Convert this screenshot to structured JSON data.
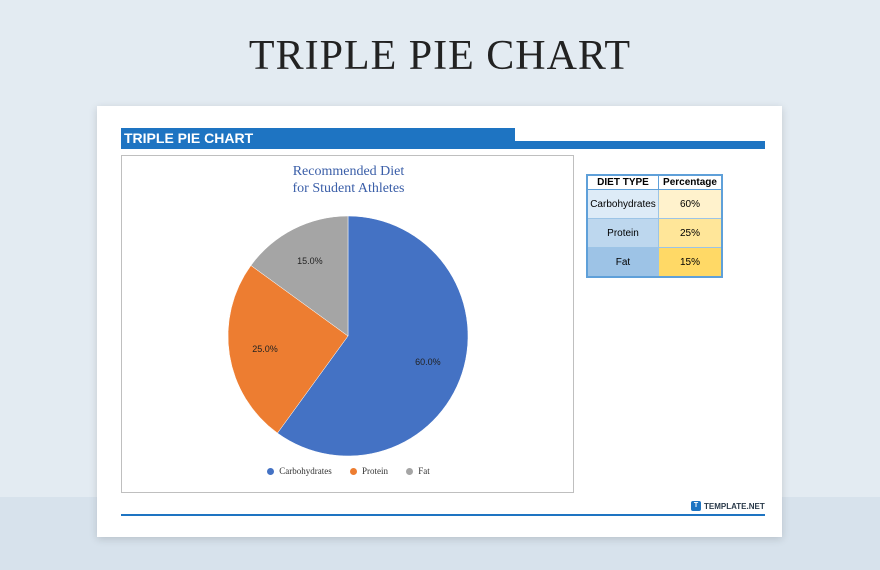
{
  "page": {
    "title": "TRIPLE PIE CHART"
  },
  "sheet": {
    "header_title": "TRIPLE PIE CHART",
    "brand": "TEMPLATE.NET"
  },
  "table": {
    "headers": [
      "DIET TYPE",
      "Percentage"
    ],
    "rows": [
      {
        "type": "Carbohydrates",
        "percent": "60%",
        "label_bg": "#ddebf7",
        "value_bg": "#fff2cc"
      },
      {
        "type": "Protein",
        "percent": "25%",
        "label_bg": "#bdd7ee",
        "value_bg": "#ffe699"
      },
      {
        "type": "Fat",
        "percent": "15%",
        "label_bg": "#9dc3e6",
        "value_bg": "#ffd966"
      }
    ]
  },
  "chart_data": {
    "type": "pie",
    "title_lines": [
      "Recommended Diet",
      "for Student Athletes"
    ],
    "categories": [
      "Carbohydrates",
      "Protein",
      "Fat"
    ],
    "values": [
      60,
      25,
      15
    ],
    "data_labels": [
      "60.0%",
      "25.0%",
      "15.0%"
    ],
    "colors": [
      "#4472c4",
      "#ed7d31",
      "#a5a5a5"
    ],
    "legend_position": "bottom"
  }
}
